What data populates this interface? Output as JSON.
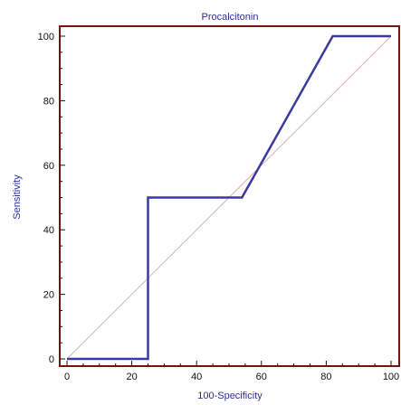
{
  "chart_data": {
    "type": "line",
    "title": "Procalcitonin",
    "xlabel": "100-Specificity",
    "ylabel": "Sensitivity",
    "xlim": [
      0,
      100
    ],
    "ylim": [
      0,
      100
    ],
    "x_ticks": [
      0,
      20,
      40,
      60,
      80,
      100
    ],
    "y_ticks": [
      0,
      20,
      40,
      60,
      80,
      100
    ],
    "grid": false,
    "legend": "none",
    "series": [
      {
        "x": [
          0,
          25,
          25,
          54,
          82,
          100
        ],
        "y": [
          0,
          0,
          50,
          50,
          100,
          100
        ],
        "color": "#3a3aa0"
      }
    ],
    "reference_line": {
      "x": [
        0,
        100
      ],
      "y": [
        0,
        100
      ],
      "color": "#e0b0b0"
    },
    "frame_color": "#7a1010"
  }
}
